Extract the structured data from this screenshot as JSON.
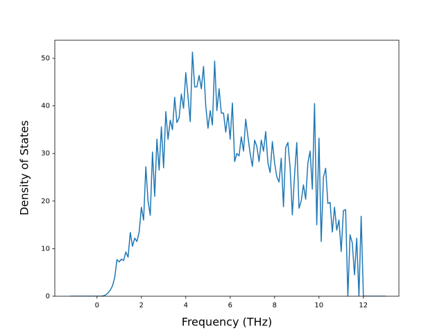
{
  "chart_data": {
    "type": "line",
    "xlabel": "Frequency (THz)",
    "ylabel": "Density of States",
    "color": "#1f77b4",
    "x": [
      -1.2,
      -1.1,
      -1.0,
      -0.9,
      -0.8,
      -0.7,
      -0.6,
      -0.5,
      -0.4,
      -0.3,
      -0.2,
      -0.1,
      0,
      0.1,
      0.2,
      0.3,
      0.4,
      0.5,
      0.6,
      0.7,
      0.8,
      0.9,
      1.0,
      1.1,
      1.2,
      1.3,
      1.4,
      1.5,
      1.6,
      1.7,
      1.8,
      1.9,
      2.0,
      2.1,
      2.2,
      2.3,
      2.4,
      2.5,
      2.6,
      2.7,
      2.8,
      2.9,
      3.0,
      3.1,
      3.2,
      3.3,
      3.4,
      3.5,
      3.6,
      3.7,
      3.8,
      3.9,
      4.0,
      4.1,
      4.2,
      4.3,
      4.4,
      4.5,
      4.6,
      4.7,
      4.8,
      4.9,
      5.0,
      5.1,
      5.2,
      5.3,
      5.4,
      5.5,
      5.6,
      5.7,
      5.8,
      5.9,
      6.0,
      6.1,
      6.2,
      6.3,
      6.4,
      6.5,
      6.6,
      6.7,
      6.8,
      6.9,
      7.0,
      7.1,
      7.2,
      7.3,
      7.4,
      7.5,
      7.6,
      7.7,
      7.8,
      7.9,
      8.0,
      8.1,
      8.2,
      8.3,
      8.4,
      8.5,
      8.6,
      8.7,
      8.8,
      8.9,
      9.0,
      9.1,
      9.2,
      9.3,
      9.4,
      9.5,
      9.6,
      9.7,
      9.8,
      9.9,
      10.0,
      10.1,
      10.2,
      10.3,
      10.4,
      10.5,
      10.6,
      10.7,
      10.8,
      10.9,
      11.0,
      11.1,
      11.2,
      11.3,
      11.4,
      11.5,
      11.6,
      11.7,
      11.8,
      11.9,
      12.0,
      12.1,
      12.2,
      12.3,
      12.4,
      12.5,
      12.6,
      12.7,
      12.8,
      12.9,
      13.0
    ],
    "values": [
      0,
      0,
      0,
      0,
      0,
      0,
      0,
      0,
      0,
      0,
      0,
      0,
      0,
      0,
      0,
      0.1,
      0.3,
      0.7,
      1.3,
      2.2,
      4,
      7.7,
      7.2,
      7.8,
      7.5,
      9.3,
      8.2,
      13.4,
      10.5,
      12.2,
      11.5,
      13.5,
      18.7,
      16,
      27.2,
      20,
      17,
      30.3,
      21,
      33,
      26.5,
      35.6,
      27,
      38.8,
      33,
      37,
      35,
      41.8,
      36.5,
      37.5,
      42.5,
      39.5,
      47,
      42,
      36.7,
      51.3,
      44,
      44,
      46.4,
      43.6,
      48.3,
      40,
      35.3,
      39,
      36,
      49.4,
      39,
      43.6,
      38.5,
      38.5,
      34.5,
      38.3,
      33,
      40.6,
      28.3,
      30,
      29.5,
      33.5,
      30.5,
      37.2,
      33.5,
      30,
      27.3,
      32.8,
      31.5,
      28.3,
      32.8,
      30.5,
      34.6,
      28,
      26,
      32.5,
      28,
      25.1,
      24,
      29,
      18.8,
      31.2,
      32.3,
      27,
      17.1,
      25.5,
      32.3,
      18.5,
      20,
      23.4,
      20.4,
      28,
      30.5,
      22.5,
      40.5,
      15,
      33.2,
      11.5,
      25,
      26.9,
      19.5,
      19.7,
      13.5,
      18.7,
      13.9,
      16,
      9.4,
      18,
      18.2,
      0,
      12.9,
      11.2,
      4.5,
      12.2,
      0,
      16.8,
      0,
      0,
      0,
      0,
      0,
      0,
      0,
      0,
      0,
      0,
      0
    ],
    "xlim": [
      -1.9,
      13.6
    ],
    "ylim": [
      0,
      53.8
    ],
    "xticks": [
      0,
      2,
      4,
      6,
      8,
      10,
      12
    ],
    "yticks": [
      0,
      10,
      20,
      30,
      40,
      50
    ]
  }
}
